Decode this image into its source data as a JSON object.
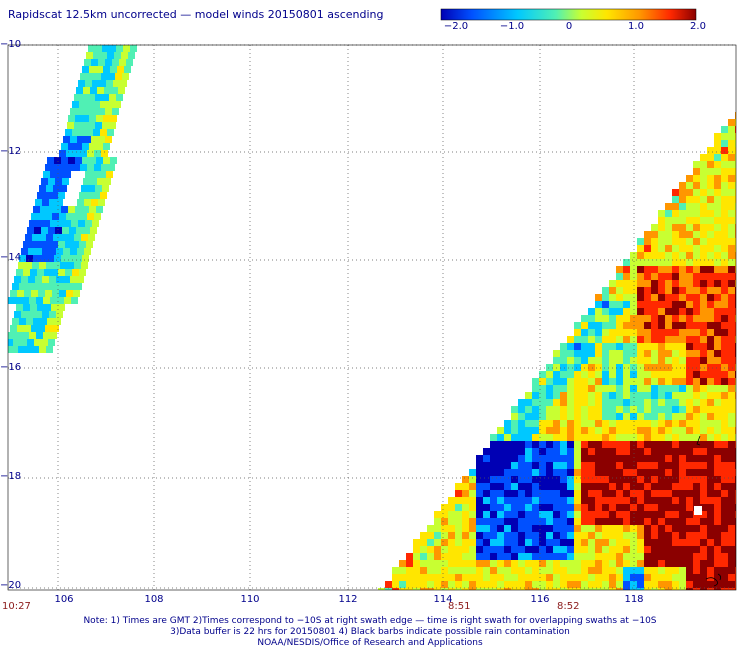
{
  "title": "Rapidscat 12.5km uncorrected — model winds 20150801 ascending",
  "colorbar": {
    "min": -2.0,
    "max": 2.0,
    "ticks": [
      "−2.0",
      "−1.0",
      "0",
      "1.0",
      "2.0"
    ],
    "colors": [
      "#0000b4",
      "#0050ff",
      "#00c8ff",
      "#50f0b4",
      "#c8ff32",
      "#ffe600",
      "#ff9600",
      "#ff2800",
      "#8b0000"
    ]
  },
  "axes": {
    "lat_labels": [
      "−10",
      "−12",
      "−14",
      "−16",
      "−18",
      "−20"
    ],
    "lon_labels": [
      "106",
      "108",
      "110",
      "112",
      "114",
      "116",
      "118"
    ],
    "lat_range": [
      -20,
      -10
    ],
    "lon_range": [
      105,
      120
    ],
    "grid": "dotted"
  },
  "time_labels": {
    "left": "10:27",
    "t1": "8:51",
    "t2": "8:52"
  },
  "notes": [
    "Note: 1) Times are GMT 2)Times correspond to −10S at right swath edge — time is right swath for overlapping swaths at −10S",
    "3)Data buffer is 22 hrs for 20150801 4) Black barbs indicate possible rain contamination",
    "NOAA/NESDIS/Office of Research and Applications"
  ]
}
